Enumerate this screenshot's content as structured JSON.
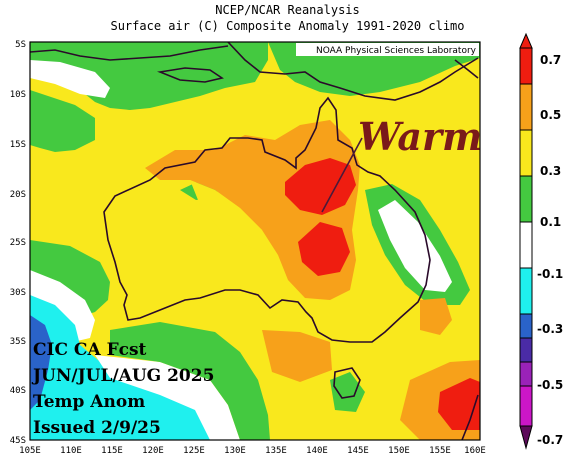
{
  "header": {
    "title": "NCEP/NCAR Reanalysis",
    "subtitle": "Surface air (C) Composite Anomaly 1991-2020 climo"
  },
  "map": {
    "credit": "NOAA Physical Sciences Laboratory",
    "annotation": "Warm",
    "lat_labels": [
      "5S",
      "10S",
      "15S",
      "20S",
      "25S",
      "30S",
      "35S",
      "40S",
      "45S"
    ],
    "lon_labels": [
      "105E",
      "110E",
      "115E",
      "120E",
      "125E",
      "130E",
      "135E",
      "140E",
      "145E",
      "150E",
      "155E",
      "160E"
    ]
  },
  "forecast_label": {
    "line1": "CIC CA Fcst",
    "line2": "JUN/JUL/AUG 2025",
    "line3": "Temp Anom",
    "line4": "Issued 2/9/25"
  },
  "colorbar": {
    "labels": [
      "0.7",
      "0.5",
      "0.3",
      "0.1",
      "-0.1",
      "-0.3",
      "-0.5",
      "-0.7"
    ],
    "colors": [
      "#ef1d10",
      "#f7a11a",
      "#f9e81d",
      "#44c940",
      "#ffffff",
      "#1ff0ee",
      "#2a63c9",
      "#4a2ba6",
      "#9a22b8",
      "#cc16c8",
      "#5c0a5a"
    ]
  },
  "legend_colors": {
    "deep_red": "#ef1d10",
    "orange": "#f7a11a",
    "yellow": "#f9e81d",
    "green": "#44c940",
    "white": "#ffffff",
    "cyan": "#1ff0ee",
    "blue": "#2a63c9"
  }
}
